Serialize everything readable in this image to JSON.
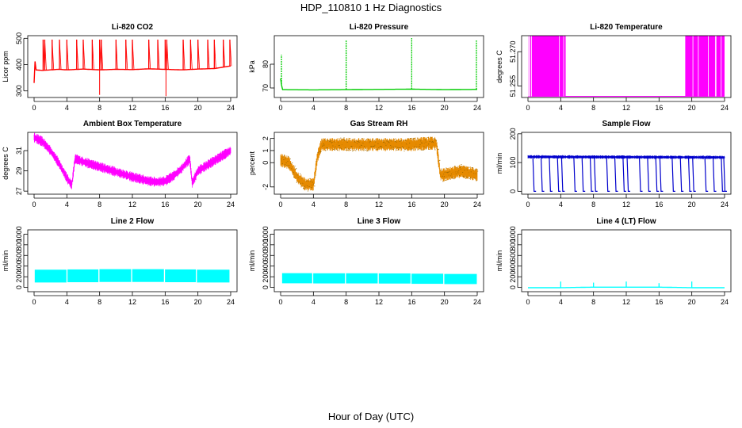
{
  "title": "HDP_110810  1 Hz Diagnostics",
  "xlabel": "Hour of Day (UTC)",
  "chart_data": [
    {
      "type": "line",
      "title": "Li-820 CO2",
      "ylabel": "Licor ppm",
      "color": "#ff0000",
      "xlim": [
        0,
        24
      ],
      "xticks": [
        0,
        4,
        8,
        12,
        16,
        20,
        24
      ],
      "ylim": [
        275,
        510
      ],
      "yticks": [
        300,
        400,
        500
      ],
      "series": [
        {
          "name": "CO2",
          "x": [
            0,
            0.1,
            0.2,
            1,
            2,
            3,
            4,
            6,
            8,
            10,
            12,
            14,
            16,
            18,
            20,
            22,
            24
          ],
          "y": [
            330,
            420,
            380,
            378,
            380,
            382,
            380,
            383,
            380,
            382,
            381,
            384,
            382,
            380,
            383,
            385,
            395
          ]
        }
      ],
      "spikes_up": [
        1.1,
        1.3,
        2.2,
        3.1,
        4.0,
        5.2,
        6.0,
        7.1,
        8.0,
        8.2,
        10.0,
        11.2,
        12.0,
        14.0,
        15.1,
        16.0,
        16.2,
        18.2,
        19.1,
        20.0,
        21.2,
        22.0,
        23.1,
        23.9
      ],
      "spikes_down": [
        {
          "x": 8.0,
          "y": 285
        },
        {
          "x": 16.1,
          "y": 280
        }
      ]
    },
    {
      "type": "line",
      "title": "Li-820 Pressure",
      "ylabel": "kPa",
      "color": "#00cc00",
      "xlim": [
        0,
        24
      ],
      "xticks": [
        0,
        4,
        8,
        12,
        16,
        20,
        24
      ],
      "ylim": [
        66,
        92
      ],
      "yticks": [
        70,
        80
      ],
      "series": [
        {
          "name": "Pressure",
          "x": [
            0,
            0.2,
            4,
            8,
            12,
            16,
            20,
            24
          ],
          "y": [
            74,
            69.3,
            69.2,
            69.3,
            69.4,
            69.5,
            69.3,
            69.4
          ]
        }
      ],
      "spikes_up": [
        {
          "x": 0.1,
          "y": 84
        },
        {
          "x": 8.0,
          "y": 90
        },
        {
          "x": 16.0,
          "y": 91
        },
        {
          "x": 23.9,
          "y": 90
        }
      ]
    },
    {
      "type": "area",
      "title": "Li-820 Temperature",
      "ylabel": "degrees C",
      "color": "#ff00ff",
      "xlim": [
        0,
        24
      ],
      "xticks": [
        0,
        4,
        8,
        12,
        16,
        20,
        24
      ],
      "ylim": [
        51.25,
        51.277
      ],
      "yticks": [
        51.255,
        51.27
      ],
      "ytick_labels": [
        "51.255",
        "51.270"
      ],
      "baseline": 51.2505,
      "oscillating_intervals": [
        [
          0,
          4.6
        ],
        [
          19.2,
          24
        ]
      ]
    },
    {
      "type": "line",
      "title": "Ambient Box Temperature",
      "ylabel": "degrees C",
      "color": "#ff00ff",
      "xlim": [
        0,
        24
      ],
      "xticks": [
        0,
        4,
        8,
        12,
        16,
        20,
        24
      ],
      "ylim": [
        26.7,
        32.8
      ],
      "yticks": [
        27,
        29,
        31
      ],
      "series": [
        {
          "name": "Box Temp",
          "x": [
            0,
            1,
            2,
            3,
            4,
            4.6,
            5.0,
            6,
            8,
            10,
            12,
            14,
            15,
            16,
            17,
            18,
            19,
            19.3,
            19.6,
            20,
            22,
            24
          ],
          "y": [
            32.3,
            31.9,
            31.0,
            29.8,
            28.3,
            27.6,
            30.2,
            29.9,
            29.4,
            28.9,
            28.4,
            28.0,
            27.9,
            28.0,
            28.5,
            29.2,
            30.2,
            27.8,
            28.3,
            29.0,
            30.0,
            31.0
          ]
        }
      ],
      "noise_band": 1.0
    },
    {
      "type": "line",
      "title": "Gas Stream RH",
      "ylabel": "percent",
      "color": "#e68a00",
      "color_dark": "#996600",
      "xlim": [
        0,
        24
      ],
      "xticks": [
        0,
        4,
        8,
        12,
        16,
        20,
        24
      ],
      "ylim": [
        -2.6,
        2.5
      ],
      "yticks": [
        -2,
        0,
        1,
        2
      ],
      "ytick_labels": [
        "-2",
        "0",
        "1",
        "2"
      ],
      "series": [
        {
          "name": "RH",
          "x": [
            0,
            1,
            2,
            3,
            4,
            4.5,
            5,
            8,
            12,
            16,
            18,
            19,
            19.5,
            20,
            22,
            24
          ],
          "y": [
            0.2,
            0.0,
            -1.2,
            -1.8,
            -1.8,
            0.5,
            1.5,
            1.5,
            1.5,
            1.5,
            1.6,
            1.6,
            -1.0,
            -1.0,
            -0.7,
            -1.0
          ]
        }
      ],
      "noise_band": 1.1
    },
    {
      "type": "line",
      "title": "Sample Flow",
      "ylabel": "ml/min",
      "color": "#0000cc",
      "xlim": [
        0,
        24
      ],
      "xticks": [
        0,
        4,
        8,
        12,
        16,
        20,
        24
      ],
      "ylim": [
        -10,
        205
      ],
      "yticks": [
        0,
        100,
        200
      ],
      "series": [
        {
          "name": "Flow",
          "x": [
            0,
            24
          ],
          "y": [
            120,
            118
          ]
        }
      ],
      "noise_band": 12,
      "drops_to_zero": [
        0.6,
        1.6,
        2.6,
        3.6,
        4.1,
        5.6,
        6.6,
        7.6,
        8.1,
        9.6,
        10.6,
        11.6,
        12.1,
        13.6,
        14.6,
        15.6,
        16.1,
        17.6,
        18.6,
        19.6,
        20.1,
        21.6,
        22.6,
        23.6,
        23.9
      ]
    },
    {
      "type": "line",
      "title": "Line 2 Flow",
      "ylabel": "ml/min",
      "color": "#00ffff",
      "xlim": [
        0,
        24
      ],
      "xticks": [
        0,
        4,
        8,
        12,
        16,
        20,
        24
      ],
      "ylim": [
        -80,
        1080
      ],
      "yticks": [
        0,
        200,
        400,
        600,
        800,
        1000
      ],
      "series": [
        {
          "name": "Line 2",
          "x": [
            0,
            4,
            8,
            12,
            16,
            20,
            24
          ],
          "y": [
            200,
            205,
            210,
            215,
            210,
            205,
            200
          ]
        }
      ],
      "band": [
        90,
        330
      ],
      "gaps": [
        4.0,
        7.9,
        11.9,
        15.9,
        19.8,
        23.9
      ]
    },
    {
      "type": "line",
      "title": "Line 3 Flow",
      "ylabel": "ml/min",
      "color": "#00ffff",
      "xlim": [
        0,
        24
      ],
      "xticks": [
        0,
        4,
        8,
        12,
        16,
        20,
        24
      ],
      "ylim": [
        -80,
        1080
      ],
      "yticks": [
        0,
        200,
        400,
        600,
        800,
        1000
      ],
      "series": [
        {
          "name": "Line 3",
          "x": [
            0,
            4,
            8,
            12,
            16,
            20,
            24
          ],
          "y": [
            190,
            185,
            185,
            185,
            180,
            175,
            170
          ]
        }
      ],
      "band": [
        90,
        280
      ],
      "gaps": [
        0.1,
        3.9,
        7.9,
        11.9,
        15.9,
        19.9
      ]
    },
    {
      "type": "line",
      "title": "Line 4 (LT) Flow",
      "ylabel": "ml/min",
      "color": "#00ffff",
      "xlim": [
        0,
        24
      ],
      "xticks": [
        0,
        4,
        8,
        12,
        16,
        20,
        24
      ],
      "ylim": [
        -80,
        1080
      ],
      "yticks": [
        0,
        200,
        400,
        600,
        800,
        1000
      ],
      "series": [
        {
          "name": "Line 4",
          "x": [
            0,
            4,
            8,
            12,
            16,
            20,
            24
          ],
          "y": [
            -5,
            -5,
            5,
            5,
            5,
            -5,
            -5
          ]
        }
      ],
      "spikes_up": [
        {
          "x": 4.0,
          "y": 110
        },
        {
          "x": 8.0,
          "y": 90
        },
        {
          "x": 12.0,
          "y": 110
        },
        {
          "x": 16.0,
          "y": 80
        },
        {
          "x": 20.0,
          "y": 110
        }
      ]
    }
  ]
}
